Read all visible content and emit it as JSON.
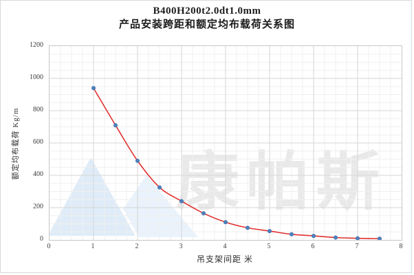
{
  "window": {
    "frame_border_color": "#d8d8d8",
    "background": "#ffffff"
  },
  "chart_data": {
    "type": "scatter",
    "title": "B400H200t2.0dt1.0mm",
    "subtitle": "产品安装跨距和额定均布载荷关系图",
    "xlabel": "吊支架间距  米",
    "ylabel": "额定均布载荷  Kg/m",
    "xlim": [
      0,
      8
    ],
    "ylim": [
      0,
      1200
    ],
    "x_ticks": [
      0,
      1,
      2,
      3,
      4,
      5,
      6,
      7,
      8
    ],
    "y_ticks": [
      0,
      200,
      400,
      600,
      800,
      1000,
      1200
    ],
    "x_minor_step": 0.25,
    "y_minor_step": 50,
    "grid": true,
    "legend_position": "none",
    "series": [
      {
        "name": "额定均布载荷",
        "style": "scatter-with-smooth-fit-line",
        "x": [
          1.0,
          1.5,
          2.0,
          2.5,
          3.0,
          3.5,
          4.0,
          4.5,
          5.0,
          5.5,
          6.0,
          6.5,
          7.0,
          7.5
        ],
        "y": [
          940,
          710,
          490,
          325,
          240,
          165,
          110,
          75,
          55,
          35,
          25,
          15,
          10,
          8
        ],
        "marker_color": "#4e81bd",
        "marker_edge_color": "#3c6da6",
        "line_color": "#e0312e"
      }
    ]
  },
  "colors": {
    "grid_minor": "#efefef",
    "grid_major": "#d6d6d6",
    "plot_border": "#c6c6c6",
    "tick_text": "#3a3a3a",
    "title_text": "#1c1c1c"
  },
  "watermark": {
    "text": "康帕斯",
    "text_color": "#e9e9e9",
    "logo_color_front": "#dfecf8",
    "logo_color_back": "#eaf3fb"
  }
}
